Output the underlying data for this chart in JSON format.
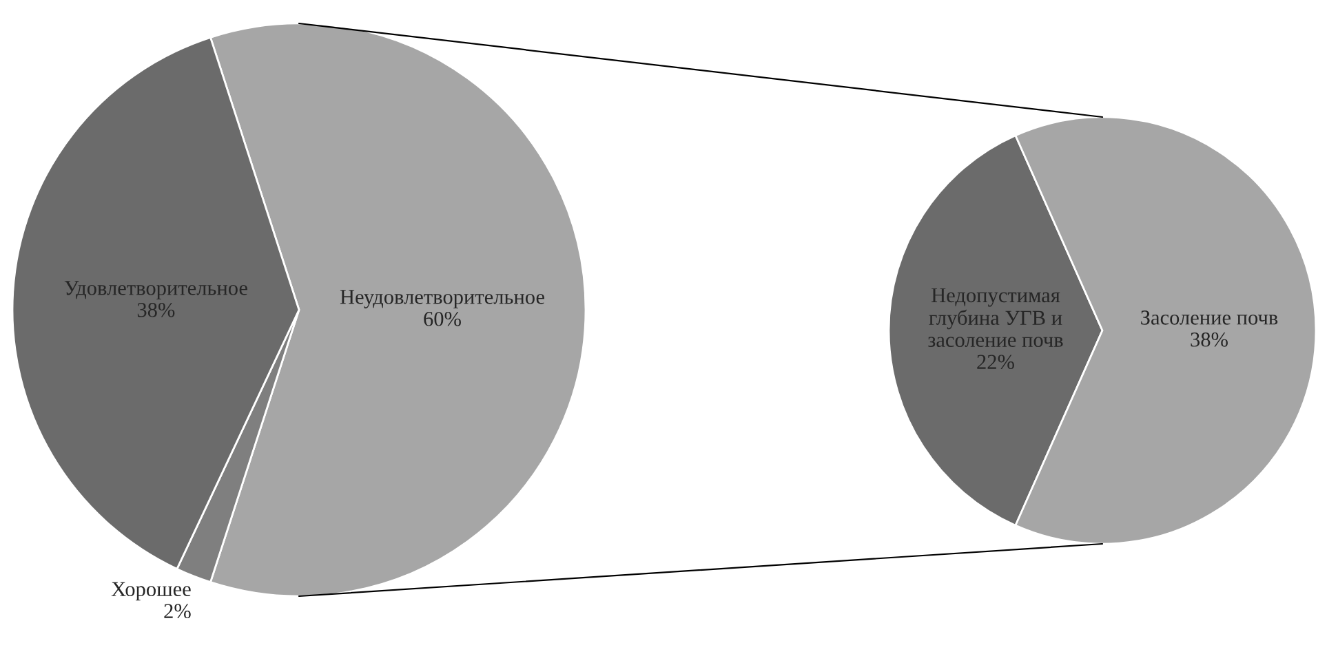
{
  "chart_data": [
    {
      "type": "pie",
      "categories": [
        "Неудовлетворительное",
        "Хорошее",
        "Удовлетворительное"
      ],
      "values": [
        60,
        2,
        38
      ],
      "colors": [
        "#a6a6a6",
        "#7f7f7f",
        "#6b6b6b"
      ],
      "value_labels": [
        "60%",
        "2%",
        "38%"
      ]
    },
    {
      "type": "pie",
      "categories": [
        "Недопустимая глубина УГВ и засоление почв",
        "Засоление почв"
      ],
      "values": [
        22,
        38
      ],
      "colors": [
        "#6b6b6b",
        "#a6a6a6"
      ],
      "value_labels": [
        "22%",
        "38%"
      ]
    }
  ]
}
